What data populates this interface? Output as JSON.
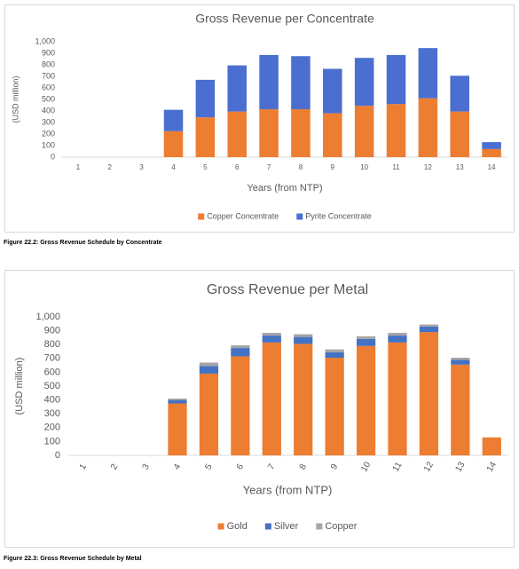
{
  "chart_data": [
    {
      "type": "bar",
      "stacked": true,
      "title": "Gross Revenue per Concentrate",
      "ylabel": "(USD million)",
      "xlabel": "Years (from NTP)",
      "categories": [
        "1",
        "2",
        "3",
        "4",
        "5",
        "6",
        "7",
        "8",
        "9",
        "10",
        "11",
        "12",
        "13",
        "14"
      ],
      "series": [
        {
          "name": "Copper Concentrate",
          "color": "#ed7d31",
          "values": [
            0,
            0,
            0,
            225,
            345,
            395,
            415,
            415,
            380,
            445,
            460,
            510,
            395,
            70
          ]
        },
        {
          "name": "Pyrite Concentrate",
          "color": "#4a6fd0",
          "values": [
            0,
            0,
            0,
            185,
            325,
            400,
            470,
            460,
            385,
            415,
            425,
            435,
            310,
            60
          ]
        }
      ],
      "ylim": [
        0,
        1000
      ],
      "yticks": [
        0,
        100,
        200,
        300,
        400,
        500,
        600,
        700,
        800,
        900,
        {
          "value": 1000,
          "label": "1,000"
        }
      ],
      "grid": false,
      "legend": "bottom"
    },
    {
      "type": "bar",
      "stacked": true,
      "title": "Gross Revenue per Metal",
      "ylabel": "(USD million)",
      "xlabel": "Years (from NTP)",
      "categories": [
        "1",
        "2",
        "3",
        "4",
        "5",
        "6",
        "7",
        "8",
        "9",
        "10",
        "11",
        "12",
        "13",
        "14"
      ],
      "series": [
        {
          "name": "Gold",
          "color": "#ed7d31",
          "values": [
            0,
            0,
            0,
            375,
            590,
            715,
            815,
            805,
            705,
            790,
            815,
            890,
            655,
            130
          ]
        },
        {
          "name": "Silver",
          "color": "#4472c4",
          "values": [
            0,
            0,
            0,
            25,
            55,
            60,
            50,
            50,
            40,
            50,
            50,
            40,
            35,
            0
          ]
        },
        {
          "name": "Copper",
          "color": "#a5a5a5",
          "values": [
            0,
            0,
            0,
            10,
            25,
            20,
            20,
            20,
            20,
            20,
            20,
            15,
            15,
            0
          ]
        }
      ],
      "ylim": [
        0,
        1000
      ],
      "yticks": [
        0,
        100,
        200,
        300,
        400,
        500,
        600,
        700,
        800,
        900,
        {
          "value": 1000,
          "label": "1,000"
        }
      ],
      "grid": false,
      "legend": "bottom"
    }
  ],
  "captions": [
    "Figure 22.2: Gross Revenue Schedule by Concentrate",
    "Figure 22.3: Gross Revenue Schedule by Metal"
  ]
}
